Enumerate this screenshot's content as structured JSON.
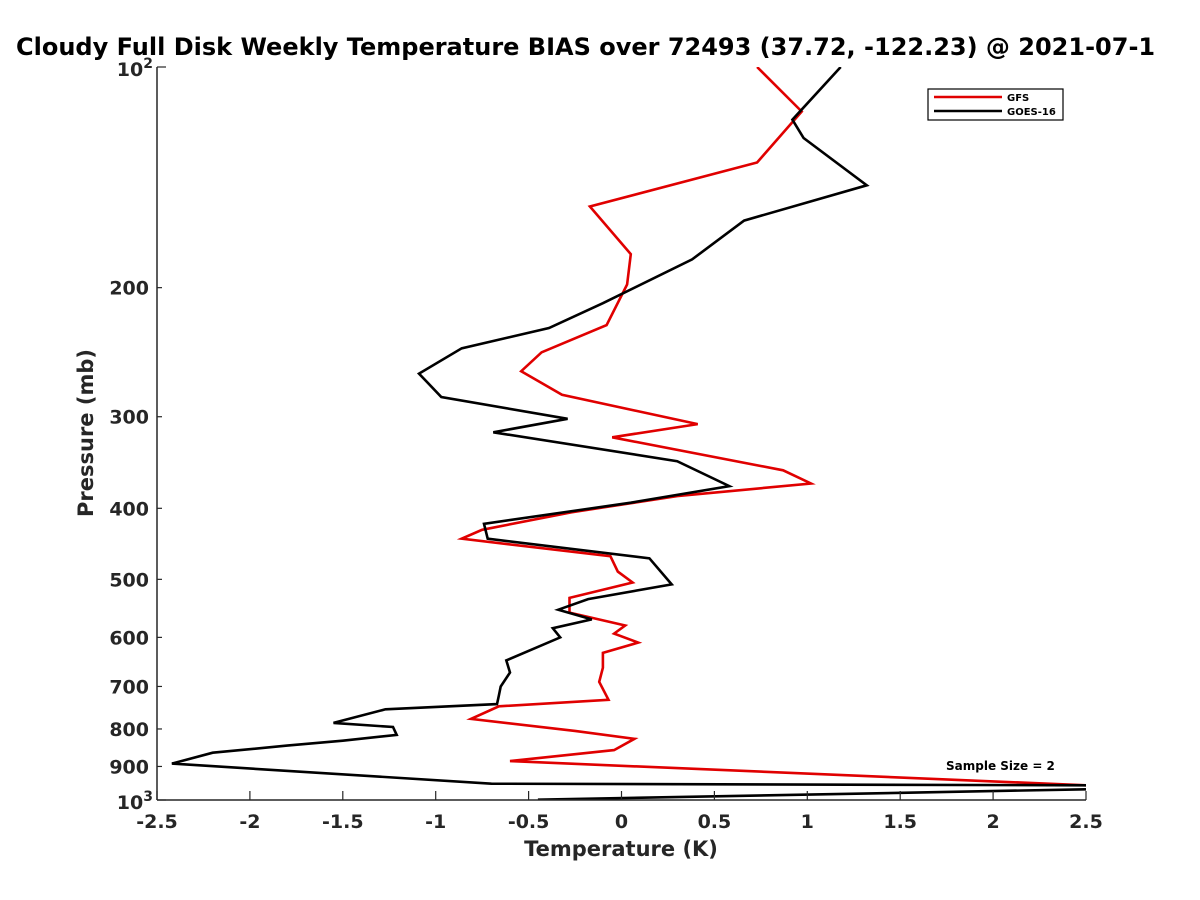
{
  "chart_data": {
    "type": "line",
    "title": "Cloudy Full Disk Weekly Temperature BIAS over 72493 (37.72, -122.23) @ 2021-07-1",
    "xlabel": "Temperature (K)",
    "ylabel": "Pressure (mb)",
    "xlim": [
      -2.5,
      2.5
    ],
    "ylim": [
      100,
      1000
    ],
    "yscale": "log",
    "y_reversed": true,
    "x_ticks": [
      "-2.5",
      "-2",
      "-1.5",
      "-1",
      "-0.5",
      "0",
      "0.5",
      "1",
      "1.5",
      "2",
      "2.5"
    ],
    "x_tick_values": [
      -2.5,
      -2,
      -1.5,
      -1,
      -0.5,
      0,
      0.5,
      1,
      1.5,
      2,
      2.5
    ],
    "y_ticks": [
      {
        "value": 100,
        "base": "10",
        "exp": "2"
      },
      {
        "value": 200,
        "label": "200"
      },
      {
        "value": 300,
        "label": "300"
      },
      {
        "value": 400,
        "label": "400"
      },
      {
        "value": 500,
        "label": "500"
      },
      {
        "value": 600,
        "label": "600"
      },
      {
        "value": 700,
        "label": "700"
      },
      {
        "value": 800,
        "label": "800"
      },
      {
        "value": 900,
        "label": "900"
      },
      {
        "value": 1000,
        "base": "10",
        "exp": "3"
      }
    ],
    "legend_position": "top-right",
    "grid": false,
    "annotation": "Sample Size = 2",
    "series": [
      {
        "name": "GFS",
        "color": "#e00000",
        "points": [
          [
            0.73,
            100
          ],
          [
            0.97,
            115
          ],
          [
            0.73,
            135
          ],
          [
            -0.17,
            155
          ],
          [
            0.05,
            180
          ],
          [
            0.03,
            198
          ],
          [
            -0.08,
            225
          ],
          [
            -0.43,
            245
          ],
          [
            -0.54,
            260
          ],
          [
            -0.32,
            280
          ],
          [
            0.41,
            307
          ],
          [
            -0.05,
            320
          ],
          [
            0.87,
            355
          ],
          [
            1.02,
            370
          ],
          [
            0.3,
            385
          ],
          [
            -0.27,
            405
          ],
          [
            -0.75,
            428
          ],
          [
            -0.86,
            440
          ],
          [
            -0.06,
            465
          ],
          [
            -0.02,
            488
          ],
          [
            0.06,
            505
          ],
          [
            -0.28,
            530
          ],
          [
            -0.28,
            555
          ],
          [
            0.02,
            578
          ],
          [
            -0.04,
            593
          ],
          [
            0.09,
            610
          ],
          [
            -0.1,
            630
          ],
          [
            -0.1,
            660
          ],
          [
            -0.12,
            690
          ],
          [
            -0.07,
            730
          ],
          [
            -0.66,
            745
          ],
          [
            -0.81,
            775
          ],
          [
            -0.25,
            805
          ],
          [
            0.07,
            825
          ],
          [
            -0.04,
            855
          ],
          [
            -0.6,
            885
          ],
          [
            2.5,
            955
          ]
        ]
      },
      {
        "name": "GOES-16",
        "color": "#000000",
        "points": [
          [
            1.18,
            100
          ],
          [
            0.92,
            118
          ],
          [
            0.98,
            125
          ],
          [
            1.32,
            145
          ],
          [
            0.66,
            162
          ],
          [
            0.38,
            183
          ],
          [
            -0.1,
            210
          ],
          [
            -0.39,
            227
          ],
          [
            -0.86,
            242
          ],
          [
            -1.09,
            262
          ],
          [
            -0.97,
            282
          ],
          [
            -0.29,
            302
          ],
          [
            -0.69,
            315
          ],
          [
            0.3,
            345
          ],
          [
            0.58,
            373
          ],
          [
            0.05,
            393
          ],
          [
            -0.74,
            420
          ],
          [
            -0.72,
            440
          ],
          [
            0.15,
            468
          ],
          [
            0.27,
            508
          ],
          [
            -0.18,
            532
          ],
          [
            -0.34,
            550
          ],
          [
            -0.16,
            567
          ],
          [
            -0.37,
            583
          ],
          [
            -0.33,
            600
          ],
          [
            -0.62,
            645
          ],
          [
            -0.6,
            670
          ],
          [
            -0.65,
            700
          ],
          [
            -0.66,
            720
          ],
          [
            -0.67,
            740
          ],
          [
            -1.27,
            752
          ],
          [
            -1.55,
            785
          ],
          [
            -1.23,
            795
          ],
          [
            -1.21,
            815
          ],
          [
            -1.5,
            830
          ],
          [
            -1.8,
            843
          ],
          [
            -2.2,
            862
          ],
          [
            -2.42,
            892
          ],
          [
            -0.7,
            950
          ],
          [
            2.5,
            955
          ]
        ]
      },
      {
        "name": "GOES-16",
        "color": "#000000",
        "points": [
          [
            -0.45,
            999
          ],
          [
            2.5,
            967
          ]
        ]
      }
    ]
  }
}
